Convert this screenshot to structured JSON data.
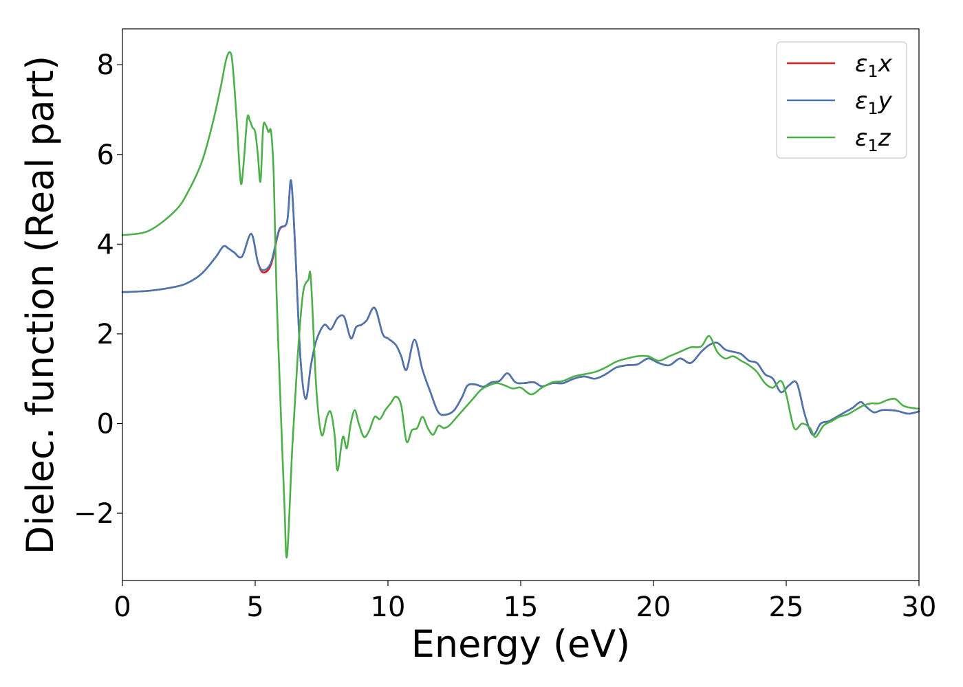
{
  "chart_data": {
    "type": "line",
    "xlabel": "Energy (eV)",
    "ylabel": "Dielec. function (Real part)",
    "xlim": [
      0,
      30
    ],
    "ylim": [
      -3.5,
      8.8
    ],
    "xticks": [
      0,
      5,
      10,
      15,
      20,
      25,
      30
    ],
    "yticks": [
      -2,
      0,
      2,
      4,
      6,
      8
    ],
    "xtick_labels": [
      "0",
      "5",
      "10",
      "15",
      "20",
      "25",
      "30"
    ],
    "ytick_labels": [
      "−2",
      "0",
      "2",
      "4",
      "6",
      "8"
    ],
    "grid": false,
    "legend_position": "top-right",
    "series": [
      {
        "name": "ε₁x",
        "legend_main": "ε",
        "legend_sub": "1",
        "legend_var": "x",
        "color": "#e41a1c",
        "x": [
          0,
          1,
          2,
          2.5,
          3,
          3.5,
          3.8,
          4.0,
          4.2,
          4.5,
          4.85,
          5.1,
          5.3,
          5.6,
          5.9,
          6.2,
          6.35,
          6.5,
          6.7,
          6.9,
          7.1,
          7.3,
          7.6,
          7.85,
          8.1,
          8.35,
          8.6,
          8.8,
          9.0,
          9.2,
          9.5,
          9.8,
          10.0,
          10.3,
          10.5,
          10.7,
          11.0,
          11.3,
          11.6,
          11.9,
          12.2,
          12.5,
          12.8,
          13.0,
          13.3,
          13.6,
          13.9,
          14.2,
          14.5,
          14.8,
          15.1,
          15.5,
          15.8,
          16.2,
          16.6,
          17.0,
          17.4,
          17.8,
          18.2,
          18.6,
          19.0,
          19.4,
          19.8,
          20.2,
          20.6,
          21.0,
          21.4,
          21.8,
          22.1,
          22.4,
          22.7,
          23.0,
          23.3,
          23.6,
          23.9,
          24.2,
          24.5,
          24.8,
          25.1,
          25.4,
          25.7,
          26.0,
          26.3,
          26.6,
          26.9,
          27.2,
          27.5,
          27.8,
          28.0,
          28.3,
          28.6,
          28.9,
          29.2,
          29.6,
          30.0
        ],
        "y": [
          2.93,
          2.96,
          3.05,
          3.15,
          3.35,
          3.7,
          3.95,
          3.9,
          3.82,
          3.72,
          4.23,
          3.6,
          3.37,
          3.55,
          4.3,
          4.5,
          5.42,
          4.0,
          1.5,
          0.55,
          1.3,
          1.85,
          2.2,
          2.1,
          2.35,
          2.38,
          1.9,
          2.15,
          2.2,
          2.3,
          2.58,
          2.0,
          1.9,
          1.75,
          1.5,
          1.2,
          1.87,
          1.2,
          0.7,
          0.25,
          0.2,
          0.3,
          0.6,
          0.85,
          0.87,
          0.82,
          0.92,
          0.95,
          1.12,
          0.92,
          0.9,
          0.92,
          0.83,
          0.9,
          0.9,
          1.0,
          1.05,
          1.0,
          1.1,
          1.25,
          1.3,
          1.32,
          1.45,
          1.35,
          1.3,
          1.45,
          1.35,
          1.6,
          1.75,
          1.8,
          1.65,
          1.6,
          1.55,
          1.4,
          1.35,
          1.1,
          1.0,
          0.7,
          0.85,
          0.9,
          0.2,
          -0.25,
          0.0,
          0.05,
          0.15,
          0.25,
          0.35,
          0.48,
          0.38,
          0.25,
          0.3,
          0.3,
          0.28,
          0.22,
          0.27
        ]
      },
      {
        "name": "ε₁y",
        "legend_main": "ε",
        "legend_sub": "1",
        "legend_var": "y",
        "color": "#4a76b0",
        "x": [
          0,
          1,
          2,
          2.5,
          3,
          3.5,
          3.8,
          4.0,
          4.2,
          4.5,
          4.85,
          5.1,
          5.3,
          5.6,
          5.9,
          6.2,
          6.35,
          6.5,
          6.7,
          6.9,
          7.1,
          7.3,
          7.6,
          7.85,
          8.1,
          8.35,
          8.6,
          8.8,
          9.0,
          9.2,
          9.5,
          9.8,
          10.0,
          10.3,
          10.5,
          10.7,
          11.0,
          11.3,
          11.6,
          11.9,
          12.2,
          12.5,
          12.8,
          13.0,
          13.3,
          13.6,
          13.9,
          14.2,
          14.5,
          14.8,
          15.1,
          15.5,
          15.8,
          16.2,
          16.6,
          17.0,
          17.4,
          17.8,
          18.2,
          18.6,
          19.0,
          19.4,
          19.8,
          20.2,
          20.6,
          21.0,
          21.4,
          21.8,
          22.1,
          22.4,
          22.7,
          23.0,
          23.3,
          23.6,
          23.9,
          24.2,
          24.5,
          24.8,
          25.1,
          25.4,
          25.7,
          26.0,
          26.3,
          26.6,
          26.9,
          27.2,
          27.5,
          27.8,
          28.0,
          28.3,
          28.6,
          28.9,
          29.2,
          29.6,
          30.0
        ],
        "y": [
          2.93,
          2.96,
          3.05,
          3.15,
          3.35,
          3.7,
          3.95,
          3.9,
          3.82,
          3.72,
          4.23,
          3.6,
          3.42,
          3.6,
          4.32,
          4.5,
          5.42,
          4.0,
          1.5,
          0.55,
          1.3,
          1.85,
          2.2,
          2.1,
          2.35,
          2.38,
          1.9,
          2.15,
          2.2,
          2.3,
          2.58,
          2.0,
          1.9,
          1.75,
          1.5,
          1.2,
          1.87,
          1.2,
          0.7,
          0.25,
          0.2,
          0.3,
          0.6,
          0.85,
          0.87,
          0.82,
          0.92,
          0.95,
          1.12,
          0.92,
          0.9,
          0.92,
          0.83,
          0.9,
          0.9,
          1.0,
          1.05,
          1.0,
          1.1,
          1.25,
          1.3,
          1.32,
          1.45,
          1.35,
          1.3,
          1.45,
          1.35,
          1.6,
          1.75,
          1.8,
          1.65,
          1.6,
          1.55,
          1.4,
          1.35,
          1.1,
          1.0,
          0.7,
          0.85,
          0.9,
          0.2,
          -0.25,
          0.0,
          0.05,
          0.15,
          0.25,
          0.35,
          0.48,
          0.38,
          0.25,
          0.3,
          0.3,
          0.28,
          0.22,
          0.27
        ]
      },
      {
        "name": "ε₁z",
        "legend_main": "ε",
        "legend_sub": "1",
        "legend_var": "z",
        "color": "#4daf4a",
        "x": [
          0,
          1,
          2,
          2.5,
          3,
          3.4,
          3.7,
          3.9,
          4.05,
          4.15,
          4.3,
          4.45,
          4.55,
          4.7,
          4.8,
          4.9,
          5.0,
          5.1,
          5.2,
          5.3,
          5.4,
          5.5,
          5.6,
          5.7,
          5.8,
          5.95,
          6.1,
          6.2,
          6.4,
          6.6,
          6.8,
          7.0,
          7.1,
          7.3,
          7.5,
          7.7,
          7.85,
          8.0,
          8.1,
          8.3,
          8.45,
          8.6,
          8.75,
          8.9,
          9.1,
          9.3,
          9.5,
          9.7,
          9.9,
          10.1,
          10.3,
          10.5,
          10.7,
          10.9,
          11.1,
          11.3,
          11.5,
          11.7,
          11.9,
          12.1,
          12.3,
          12.6,
          12.9,
          13.2,
          13.5,
          13.8,
          14.1,
          14.4,
          14.7,
          15.0,
          15.4,
          15.8,
          16.2,
          16.6,
          17.0,
          17.4,
          17.8,
          18.2,
          18.6,
          19.0,
          19.4,
          19.8,
          20.2,
          20.6,
          21.0,
          21.4,
          21.8,
          22.1,
          22.4,
          22.7,
          23.0,
          23.3,
          23.6,
          23.9,
          24.2,
          24.5,
          24.8,
          25.0,
          25.3,
          25.6,
          25.9,
          26.1,
          26.4,
          26.7,
          27.0,
          27.3,
          27.6,
          27.9,
          28.2,
          28.5,
          28.8,
          29.1,
          29.4,
          29.7,
          30.0
        ],
        "y": [
          4.2,
          4.3,
          4.75,
          5.2,
          5.85,
          6.7,
          7.5,
          8.1,
          8.28,
          8.0,
          6.8,
          5.4,
          5.7,
          6.8,
          6.75,
          6.6,
          6.5,
          6.0,
          5.4,
          6.6,
          6.65,
          6.5,
          6.5,
          5.5,
          3.0,
          0.5,
          -1.8,
          -2.95,
          -0.5,
          1.5,
          2.9,
          3.2,
          3.2,
          0.8,
          -0.25,
          0.15,
          0.25,
          -0.3,
          -1.05,
          -0.3,
          -0.55,
          0.0,
          0.3,
          0.0,
          -0.3,
          -0.15,
          0.15,
          0.1,
          0.3,
          0.45,
          0.6,
          0.4,
          -0.4,
          -0.15,
          -0.1,
          0.15,
          -0.1,
          -0.25,
          -0.05,
          -0.1,
          -0.05,
          0.15,
          0.35,
          0.55,
          0.75,
          0.85,
          0.9,
          0.85,
          0.78,
          0.8,
          0.65,
          0.8,
          0.92,
          0.95,
          1.05,
          1.1,
          1.15,
          1.25,
          1.38,
          1.45,
          1.5,
          1.5,
          1.4,
          1.5,
          1.6,
          1.7,
          1.72,
          1.95,
          1.6,
          1.45,
          1.5,
          1.4,
          1.3,
          1.15,
          0.9,
          0.8,
          0.95,
          0.65,
          -0.1,
          0.0,
          -0.1,
          -0.3,
          -0.05,
          0.05,
          0.15,
          0.2,
          0.3,
          0.4,
          0.45,
          0.45,
          0.52,
          0.55,
          0.4,
          0.35,
          0.33
        ]
      }
    ]
  }
}
